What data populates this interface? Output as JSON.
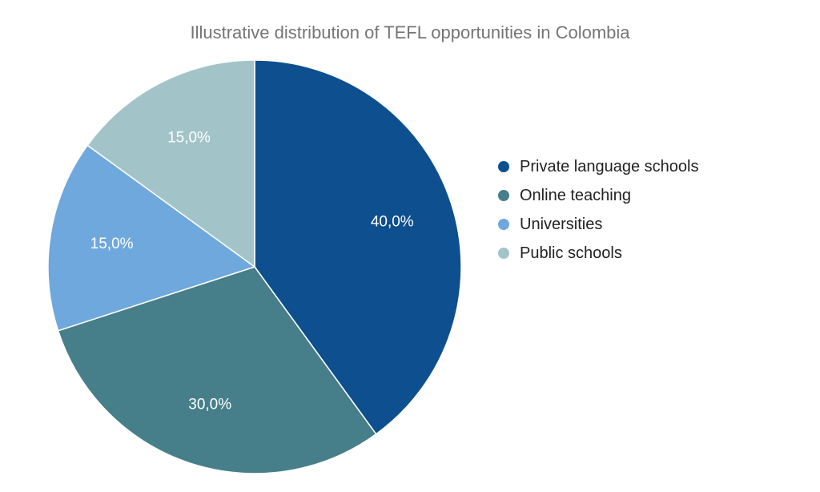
{
  "chart_data": {
    "type": "pie",
    "title": "Illustrative distribution of TEFL opportunities in Colombia",
    "legend_position": "right",
    "slices": [
      {
        "label": "Private language schools",
        "value": 40.0,
        "display": "40,0%",
        "color": "#0d4f8f"
      },
      {
        "label": "Online teaching",
        "value": 30.0,
        "display": "30,0%",
        "color": "#467f8a"
      },
      {
        "label": "Universities",
        "value": 15.0,
        "display": "15,0%",
        "color": "#6fa8dc"
      },
      {
        "label": "Public schools",
        "value": 15.0,
        "display": "15,0%",
        "color": "#a2c4c9"
      }
    ]
  }
}
